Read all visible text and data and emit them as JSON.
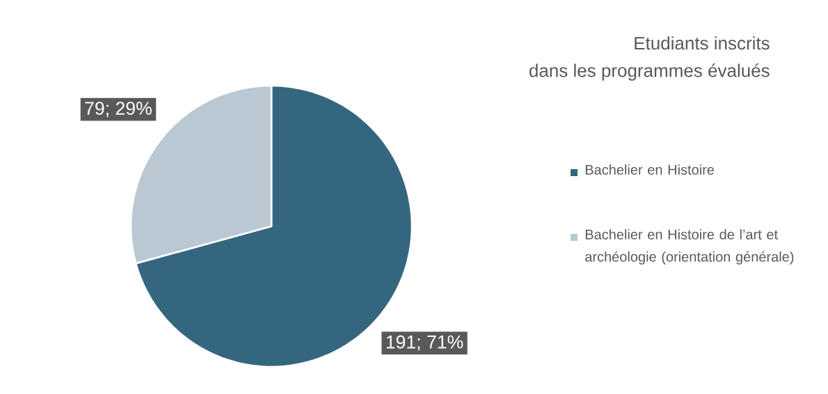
{
  "chart_data": {
    "type": "pie",
    "title": "Etudiants inscrits",
    "subtitle": "dans les programmes évalués",
    "categories": [
      "Bachelier en Histoire",
      "Bachelier en Histoire de l’art et archéologie (orientation générale)"
    ],
    "values": [
      191,
      79
    ],
    "colors": [
      "#35667f",
      "#b9c8d3"
    ],
    "value_labels": [
      "191; 71%",
      "79; 29%"
    ],
    "legend": "right"
  }
}
